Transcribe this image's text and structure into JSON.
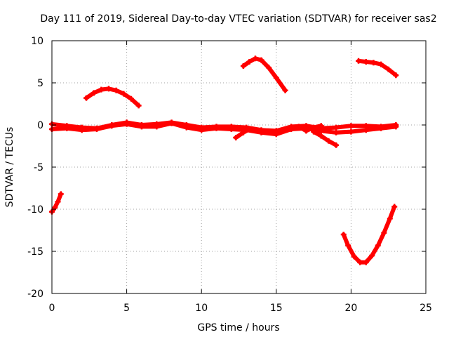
{
  "chart_data": {
    "type": "scatter",
    "title": "Day 111 of 2019, Sidereal Day-to-day VTEC variation (SDTVAR) for receiver sas2",
    "xlabel": "GPS time / hours",
    "ylabel": "SDTVAR / TECUs",
    "xlim": [
      0,
      25
    ],
    "ylim": [
      -20,
      10
    ],
    "xticks": [
      0,
      5,
      10,
      15,
      20,
      25
    ],
    "yticks": [
      -20,
      -15,
      -10,
      -5,
      0,
      5,
      10
    ],
    "xtick_labels": [
      "0",
      "5",
      "10",
      "15",
      "20",
      "25"
    ],
    "ytick_labels": [
      "-20",
      "-15",
      "-10",
      "-5",
      "0",
      "5",
      "10"
    ],
    "grid": true,
    "marker_color": "#ff0000",
    "series": [
      {
        "name": "arc-rise-early",
        "x": [
          0.0,
          0.2,
          0.4,
          0.6
        ],
        "y": [
          -10.3,
          -9.8,
          -9.1,
          -8.2
        ]
      },
      {
        "name": "arc-hump-morning",
        "x": [
          2.3,
          2.8,
          3.3,
          3.8,
          4.3,
          4.8,
          5.3,
          5.8
        ],
        "y": [
          3.2,
          3.8,
          4.2,
          4.3,
          4.1,
          3.7,
          3.1,
          2.3
        ]
      },
      {
        "name": "arc-peak-midday",
        "x": [
          12.8,
          13.2,
          13.6,
          14.0,
          14.5,
          15.0,
          15.6
        ],
        "y": [
          7.0,
          7.5,
          7.9,
          7.7,
          6.8,
          5.6,
          4.1
        ]
      },
      {
        "name": "arc-fall-evening",
        "x": [
          20.5,
          21.0,
          21.5,
          22.0,
          22.5,
          23.0
        ],
        "y": [
          7.6,
          7.5,
          7.4,
          7.2,
          6.6,
          5.9
        ]
      },
      {
        "name": "arc-dip-evening",
        "x": [
          19.5,
          19.8,
          20.2,
          20.6,
          21.0,
          21.4,
          21.8,
          22.2,
          22.6,
          22.9
        ],
        "y": [
          -13.0,
          -14.3,
          -15.6,
          -16.3,
          -16.3,
          -15.5,
          -14.3,
          -12.8,
          -11.1,
          -9.7
        ]
      },
      {
        "name": "band-main-a",
        "x": [
          0,
          1,
          2,
          3,
          4,
          5,
          6,
          7,
          8,
          9,
          10,
          11,
          12,
          13,
          14,
          15,
          16,
          17,
          18,
          19,
          20,
          21,
          22,
          23
        ],
        "y": [
          0.1,
          -0.1,
          -0.3,
          -0.4,
          0.0,
          0.3,
          0.0,
          0.1,
          0.3,
          0.0,
          -0.3,
          -0.2,
          -0.2,
          -0.3,
          -0.6,
          -0.7,
          -0.2,
          -0.1,
          -0.4,
          -0.3,
          -0.1,
          -0.1,
          -0.2,
          0.0
        ]
      },
      {
        "name": "band-main-b",
        "x": [
          0,
          1,
          2,
          3,
          4,
          5,
          6,
          7,
          8,
          9,
          10,
          11,
          12,
          13,
          14,
          15,
          16,
          17,
          18,
          19,
          20,
          21,
          22,
          23
        ],
        "y": [
          -0.5,
          -0.4,
          -0.6,
          -0.5,
          -0.1,
          0.1,
          -0.2,
          -0.2,
          0.2,
          -0.3,
          -0.6,
          -0.4,
          -0.5,
          -0.6,
          -0.9,
          -1.1,
          -0.5,
          -0.4,
          -0.7,
          -0.9,
          -0.8,
          -0.6,
          -0.4,
          -0.2
        ]
      },
      {
        "name": "band-offset-dip",
        "x": [
          12.3,
          12.8,
          13.2
        ],
        "y": [
          -1.5,
          -0.9,
          -0.5
        ]
      },
      {
        "name": "band-offset-tail",
        "x": [
          17.5,
          18.0,
          18.5,
          19.0
        ],
        "y": [
          -0.8,
          -1.3,
          -1.9,
          -2.4
        ]
      },
      {
        "name": "band-offset-rise",
        "x": [
          16.5,
          17.0,
          17.5,
          18.0
        ],
        "y": [
          -0.2,
          -0.7,
          -0.3,
          -0.1
        ]
      }
    ]
  }
}
